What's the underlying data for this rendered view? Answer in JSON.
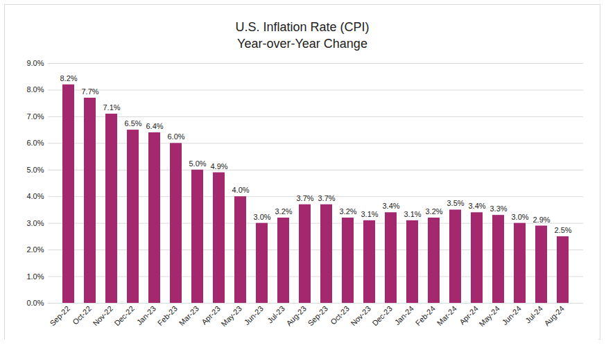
{
  "chart_data": {
    "type": "bar",
    "title": "U.S. Inflation Rate (CPI)",
    "subtitle": "Year-over-Year Change",
    "categories": [
      "Sep-22",
      "Oct-22",
      "Nov-22",
      "Dec-22",
      "Jan-23",
      "Feb-23",
      "Mar-23",
      "Apr-23",
      "May-23",
      "Jun-23",
      "Jul-23",
      "Aug-23",
      "Sep-23",
      "Oct-23",
      "Nov-23",
      "Dec-23",
      "Jan-24",
      "Feb-24",
      "Mar-24",
      "Apr-24",
      "May-24",
      "Jun-24",
      "Jul-24",
      "Aug-24"
    ],
    "values": [
      8.2,
      7.7,
      7.1,
      6.5,
      6.4,
      6.0,
      5.0,
      4.9,
      4.0,
      3.0,
      3.2,
      3.7,
      3.7,
      3.2,
      3.1,
      3.4,
      3.1,
      3.2,
      3.5,
      3.4,
      3.3,
      3.0,
      2.9,
      2.5
    ],
    "value_labels": [
      "8.2%",
      "7.7%",
      "7.1%",
      "6.5%",
      "6.4%",
      "6.0%",
      "5.0%",
      "4.9%",
      "4.0%",
      "3.0%",
      "3.2%",
      "3.7%",
      "3.7%",
      "3.2%",
      "3.1%",
      "3.4%",
      "3.1%",
      "3.2%",
      "3.5%",
      "3.4%",
      "3.3%",
      "3.0%",
      "2.9%",
      "2.5%"
    ],
    "color": "#a3286e",
    "ylim": [
      0,
      9
    ],
    "yticks": [
      {
        "value": 0,
        "label": "0.0%"
      },
      {
        "value": 1,
        "label": "1.0%"
      },
      {
        "value": 2,
        "label": "2.0%"
      },
      {
        "value": 3,
        "label": "3.0%"
      },
      {
        "value": 4,
        "label": "4.0%"
      },
      {
        "value": 5,
        "label": "5.0%"
      },
      {
        "value": 6,
        "label": "6.0%"
      },
      {
        "value": 7,
        "label": "7.0%"
      },
      {
        "value": 8,
        "label": "8.0%"
      },
      {
        "value": 9,
        "label": "9.0%"
      }
    ],
    "grid": true,
    "data_labels": true
  }
}
